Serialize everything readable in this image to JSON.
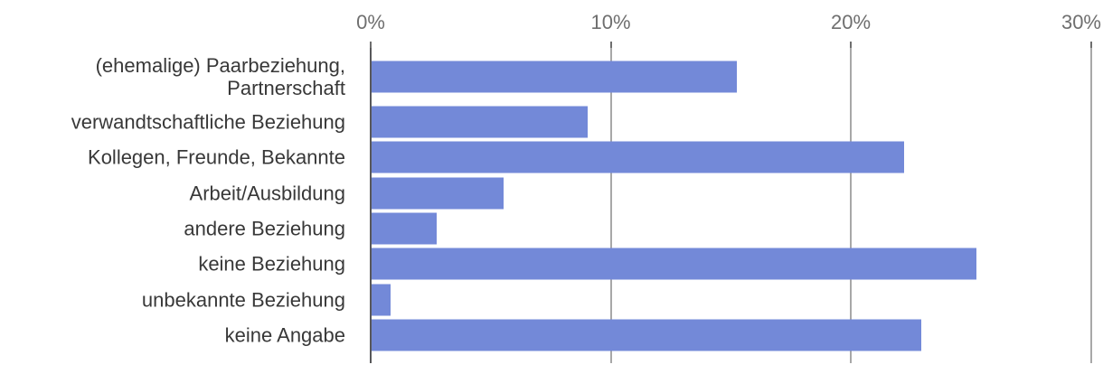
{
  "chart_data": {
    "type": "bar",
    "orientation": "horizontal",
    "title": "",
    "categories": [
      "(ehemalige) Paarbeziehung, Partnerschaft",
      "verwandtschaftliche Beziehung",
      "Kollegen, Freunde, Bekannte",
      "Arbeit/Ausbildung",
      "andere Beziehung",
      "keine Beziehung",
      "unbekannte Beziehung",
      "keine Angabe"
    ],
    "values": [
      15.2,
      9.0,
      22.2,
      5.5,
      2.7,
      25.2,
      0.8,
      22.9
    ],
    "unit": "%",
    "x_axis": {
      "position": "top",
      "range": [
        0,
        30
      ],
      "tick_labels": [
        "0%",
        "10%",
        "20%",
        "30%"
      ],
      "tick_values": [
        0,
        10,
        20,
        30
      ]
    },
    "grid": "vertical-gridlines-at-ticks",
    "legend": "none",
    "colors": {
      "bar": "#7389d8",
      "axis_line": "#58585a",
      "gridline": "#a8a8a8",
      "tick": "#6e6e6e",
      "tick_label": "#6f6f6f",
      "category_label": "#383838",
      "background": "#ffffff"
    }
  }
}
